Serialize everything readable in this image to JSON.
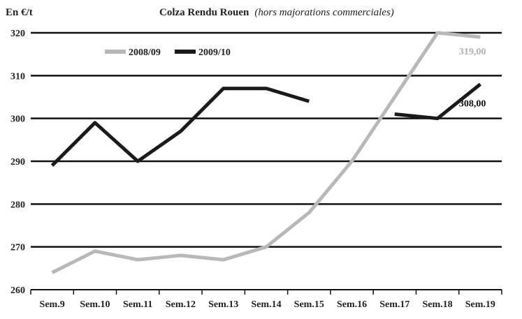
{
  "chart_data": {
    "type": "line",
    "title": "Colza Rendu Rouen",
    "subtitle": "(hors majorations commerciales)",
    "ylabel": "En €/t",
    "xlabel": "",
    "categories": [
      "Sem.9",
      "Sem.10",
      "Sem.11",
      "Sem.12",
      "Sem.13",
      "Sem.14",
      "Sem.15",
      "Sem.16",
      "Sem.17",
      "Sem.18",
      "Sem.19"
    ],
    "ylim": [
      260,
      320
    ],
    "yticks": [
      260,
      270,
      280,
      290,
      300,
      310,
      320
    ],
    "grid": "horizontal",
    "legend_position": "top-left",
    "series": [
      {
        "name": "2008/09",
        "color": "#b8b8b8",
        "values": [
          264,
          269,
          267,
          268,
          267,
          270,
          278,
          290,
          305,
          320,
          319
        ],
        "end_label": "319,00"
      },
      {
        "name": "2009/10",
        "color": "#1a1a1a",
        "values": [
          289,
          299,
          290,
          297,
          307,
          307,
          304,
          null,
          301,
          300,
          308
        ],
        "end_label": "308,00"
      }
    ]
  }
}
